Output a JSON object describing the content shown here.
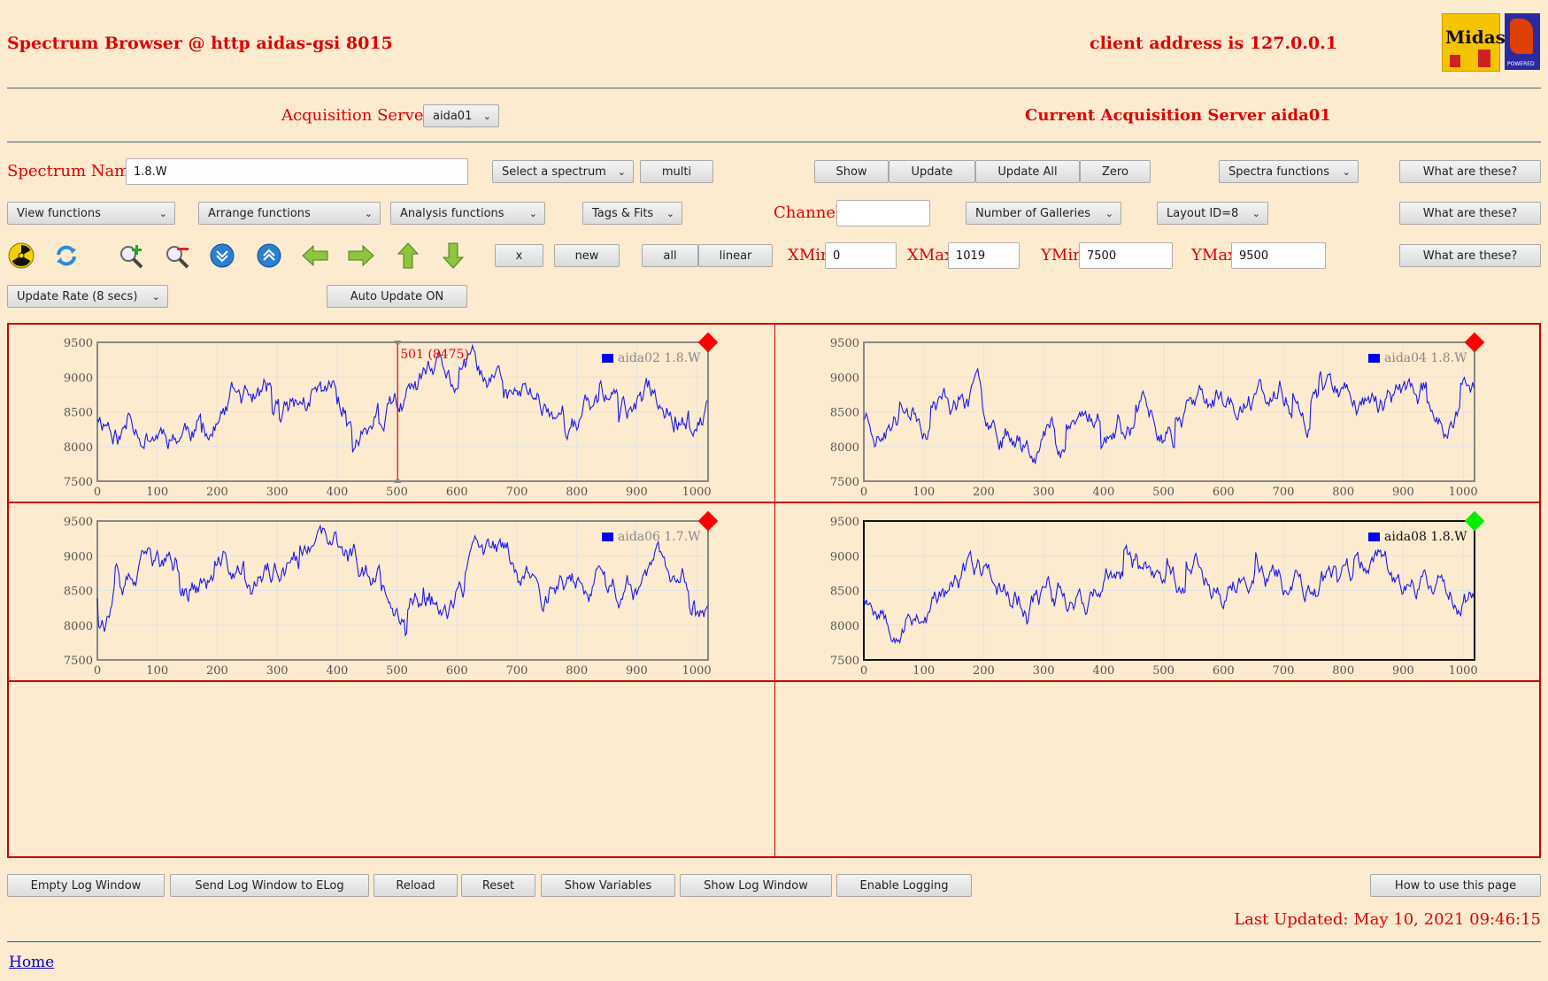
{
  "header": {
    "title": "Spectrum Browser @ http aidas-gsi 8015",
    "client": "client address is 127.0.0.1",
    "logo_text": "Midas",
    "tcl_text": "POWERED"
  },
  "acq": {
    "label": "Acquisition Servers",
    "server_select": "aida01",
    "current": "Current Acquisition Server aida01"
  },
  "row1": {
    "spectrum_label": "Spectrum Name:",
    "spectrum_value": "1.8.W",
    "select_spectrum": "Select a spectrum",
    "multi": "multi",
    "show": "Show",
    "update": "Update",
    "update_all": "Update All",
    "zero": "Zero",
    "spectra_functions": "Spectra functions",
    "what": "What are these?"
  },
  "row2": {
    "view_functions": "View functions",
    "arrange_functions": "Arrange functions",
    "analysis_functions": "Analysis functions",
    "tags_fits": "Tags & Fits",
    "channel_label": "Channel:",
    "channel_value": "",
    "galleries": "Number of Galleries",
    "layout": "Layout ID=8",
    "what": "What are these?"
  },
  "row3": {
    "x": "x",
    "new": "new",
    "all": "all",
    "linear": "linear",
    "xmin_label": "XMin",
    "xmin": "0",
    "xmax_label": "XMax",
    "xmax": "1019",
    "ymin_label": "YMin",
    "ymin": "7500",
    "ymax_label": "YMax",
    "ymax": "9500",
    "what": "What are these?"
  },
  "row4": {
    "update_rate": "Update Rate (8 secs)",
    "auto_update": "Auto Update ON"
  },
  "chart_data": [
    {
      "type": "line",
      "series": [
        {
          "name": "aida02 1.8.W"
        }
      ],
      "xlim": [
        0,
        1019
      ],
      "ylim": [
        7500,
        9500
      ],
      "xticks": [
        "0",
        "100",
        "200",
        "300",
        "400",
        "500",
        "600",
        "700",
        "800",
        "900",
        "1000"
      ],
      "yticks": [
        "9500",
        "9000",
        "8500",
        "8000",
        "7500"
      ],
      "cursor": {
        "x": 501,
        "label": "501 (8475)"
      },
      "status_color": "#ff0000",
      "active": false,
      "seed": 11
    },
    {
      "type": "line",
      "series": [
        {
          "name": "aida04 1.8.W"
        }
      ],
      "xlim": [
        0,
        1019
      ],
      "ylim": [
        7500,
        9500
      ],
      "xticks": [
        "0",
        "100",
        "200",
        "300",
        "400",
        "500",
        "600",
        "700",
        "800",
        "900",
        "1000"
      ],
      "yticks": [
        "9500",
        "9000",
        "8500",
        "8000",
        "7500"
      ],
      "status_color": "#ff0000",
      "active": false,
      "seed": 23
    },
    {
      "type": "line",
      "series": [
        {
          "name": "aida06 1.7.W"
        }
      ],
      "xlim": [
        0,
        1019
      ],
      "ylim": [
        7500,
        9500
      ],
      "xticks": [
        "0",
        "100",
        "200",
        "300",
        "400",
        "500",
        "600",
        "700",
        "800",
        "900",
        "1000"
      ],
      "yticks": [
        "9500",
        "9000",
        "8500",
        "8000",
        "7500"
      ],
      "status_color": "#ff0000",
      "active": false,
      "seed": 37
    },
    {
      "type": "line",
      "series": [
        {
          "name": "aida08 1.8.W"
        }
      ],
      "xlim": [
        0,
        1019
      ],
      "ylim": [
        7500,
        9500
      ],
      "xticks": [
        "0",
        "100",
        "200",
        "300",
        "400",
        "500",
        "600",
        "700",
        "800",
        "900",
        "1000"
      ],
      "yticks": [
        "9500",
        "9000",
        "8500",
        "8000",
        "7500"
      ],
      "status_color": "#00ee00",
      "active": true,
      "seed": 53
    }
  ],
  "footer": {
    "empty_log": "Empty Log Window",
    "send_log": "Send Log Window to ELog",
    "reload": "Reload",
    "reset": "Reset",
    "show_vars": "Show Variables",
    "show_log": "Show Log Window",
    "enable_logging": "Enable Logging",
    "how_to": "How to use this page",
    "last_updated": "Last Updated: May 10, 2021 09:46:15",
    "home": "Home"
  }
}
